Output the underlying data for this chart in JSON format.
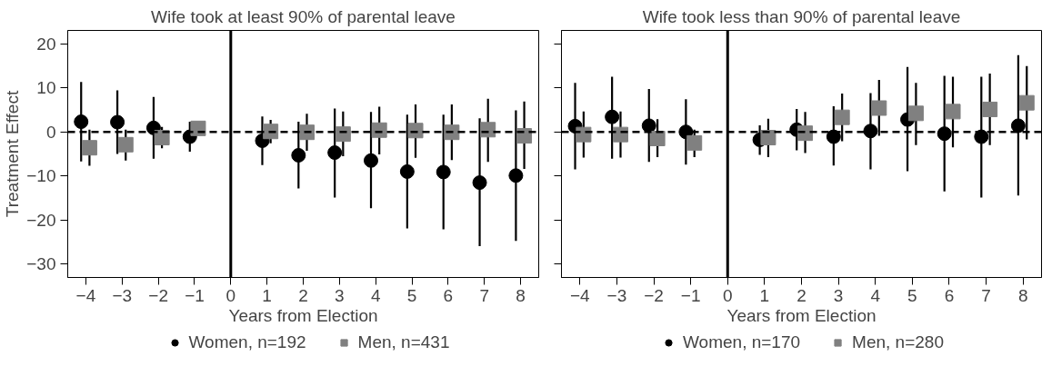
{
  "chart_data": [
    {
      "type": "scatter",
      "title": "Wife took at least 90% of parental leave",
      "xlabel": "Years from Election",
      "ylabel": "Treatment Effect",
      "xlim": [
        -4.5,
        8.5
      ],
      "xticks": [
        -4,
        -3,
        -2,
        -1,
        0,
        1,
        2,
        3,
        4,
        5,
        6,
        7,
        8
      ],
      "ylim": [
        -33,
        23
      ],
      "yticks": [
        -30,
        -20,
        -10,
        0,
        10,
        20
      ],
      "grid": false,
      "legend": "bottom",
      "ref_lines": [
        {
          "axis": "x",
          "value": 0,
          "color": "#000000",
          "line_style": "solid"
        },
        {
          "axis": "y",
          "value": 0,
          "color": "#000000",
          "line_style": "dashed"
        }
      ],
      "series": [
        {
          "name": "Women, n=192",
          "color": "#000000",
          "marker": "circle",
          "x": [
            -4.13,
            -3.13,
            -2.13,
            -1.13,
            0.87,
            1.87,
            2.87,
            3.87,
            4.87,
            5.87,
            6.87,
            7.87
          ],
          "values": [
            2.3,
            2.2,
            0.9,
            -1.1,
            -2.0,
            -5.3,
            -4.7,
            -6.5,
            -9.0,
            -9.1,
            -11.5,
            -9.9
          ],
          "errors": [
            [
              -6.7,
              11.3
            ],
            [
              -5.0,
              9.4
            ],
            [
              -6.1,
              7.9
            ],
            [
              -4.5,
              2.3
            ],
            [
              -7.5,
              3.5
            ],
            [
              -12.8,
              2.3
            ],
            [
              -14.9,
              5.3
            ],
            [
              -17.3,
              4.5
            ],
            [
              -21.9,
              3.9
            ],
            [
              -22.1,
              3.9
            ],
            [
              -25.9,
              3.1
            ],
            [
              -24.7,
              4.9
            ]
          ]
        },
        {
          "name": "Men, n=431",
          "color": "#808080",
          "marker": "square",
          "x": [
            -3.9,
            -2.9,
            -1.9,
            -0.9,
            1.1,
            2.1,
            3.1,
            4.1,
            5.1,
            6.1,
            7.1,
            8.1
          ],
          "values": [
            -3.6,
            -2.9,
            -1.3,
            0.8,
            0.1,
            -0.1,
            -0.5,
            0.4,
            0.3,
            -0.1,
            0.5,
            -0.9
          ],
          "errors": [
            [
              -7.7,
              0.5
            ],
            [
              -6.5,
              0.5
            ],
            [
              -3.7,
              1.1
            ],
            [
              -0.6,
              2.1
            ],
            [
              -2.6,
              2.7
            ],
            [
              -4.3,
              4.1
            ],
            [
              -5.5,
              4.6
            ],
            [
              -5.1,
              5.7
            ],
            [
              -5.9,
              6.2
            ],
            [
              -6.4,
              6.2
            ],
            [
              -6.8,
              7.5
            ],
            [
              -8.4,
              6.9
            ]
          ]
        }
      ]
    },
    {
      "type": "scatter",
      "title": "Wife took less than 90% of parental leave",
      "xlabel": "Years from Election",
      "xlim": [
        -4.5,
        8.5
      ],
      "xticks": [
        -4,
        -3,
        -2,
        -1,
        0,
        1,
        2,
        3,
        4,
        5,
        6,
        7,
        8
      ],
      "ylim": [
        -33,
        23
      ],
      "yticks": [
        -30,
        -20,
        -10,
        0,
        10,
        20
      ],
      "tick_labels": "x",
      "grid": false,
      "legend": "bottom",
      "ref_lines": [
        {
          "axis": "x",
          "value": 0,
          "color": "#000000",
          "line_style": "solid"
        },
        {
          "axis": "y",
          "value": 0,
          "color": "#000000",
          "line_style": "dashed"
        }
      ],
      "series": [
        {
          "name": "Women, n=170",
          "color": "#000000",
          "marker": "circle",
          "x": [
            -4.13,
            -3.13,
            -2.13,
            -1.13,
            0.87,
            1.87,
            2.87,
            3.87,
            4.87,
            5.87,
            6.87,
            7.87
          ],
          "values": [
            1.3,
            3.4,
            1.4,
            0.0,
            -1.8,
            0.5,
            -1.1,
            0.2,
            2.8,
            -0.4,
            -1.1,
            1.4
          ],
          "errors": [
            [
              -8.5,
              11.1
            ],
            [
              -6.1,
              12.5
            ],
            [
              -6.8,
              9.7
            ],
            [
              -7.4,
              7.4
            ],
            [
              -5.2,
              1.5
            ],
            [
              -4.2,
              5.2
            ],
            [
              -7.6,
              5.8
            ],
            [
              -8.5,
              8.8
            ],
            [
              -8.9,
              14.7
            ],
            [
              -13.5,
              12.7
            ],
            [
              -14.9,
              12.5
            ],
            [
              -14.4,
              17.4
            ]
          ]
        },
        {
          "name": "Men, n=280",
          "color": "#808080",
          "marker": "square",
          "x": [
            -3.9,
            -2.9,
            -1.9,
            -0.9,
            1.1,
            2.1,
            3.1,
            4.1,
            5.1,
            6.1,
            7.1,
            8.1
          ],
          "values": [
            -0.6,
            -0.6,
            -1.5,
            -2.5,
            -1.3,
            -0.3,
            3.3,
            5.4,
            4.2,
            4.6,
            5.1,
            6.6
          ],
          "errors": [
            [
              -5.8,
              4.6
            ],
            [
              -5.8,
              4.6
            ],
            [
              -5.7,
              2.9
            ],
            [
              -5.7,
              0.5
            ],
            [
              -5.7,
              3.0
            ],
            [
              -4.8,
              4.5
            ],
            [
              -2.1,
              8.7
            ],
            [
              -0.9,
              11.8
            ],
            [
              -3.0,
              11.1
            ],
            [
              -3.5,
              12.5
            ],
            [
              -3.0,
              13.2
            ],
            [
              -1.7,
              14.9
            ]
          ]
        }
      ]
    }
  ]
}
